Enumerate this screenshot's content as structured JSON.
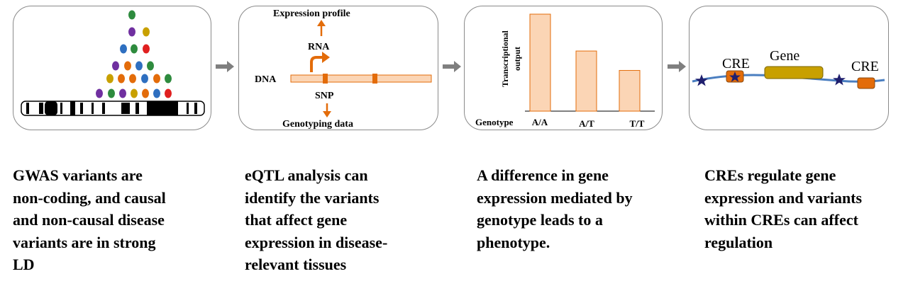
{
  "panel2": {
    "expression_profile": "Expression profile",
    "rna": "RNA",
    "dna": "DNA",
    "snp": "SNP",
    "genotyping_data": "Genotyping data"
  },
  "panel3": {
    "ylabel_line1": "Transcriptional",
    "ylabel_line2": "output",
    "genotype_label": "Genotype",
    "genotypes": [
      "A/A",
      "A/T",
      "T/T"
    ],
    "relative_output": [
      1.0,
      0.62,
      0.42
    ]
  },
  "panel4": {
    "cre_left": "CRE",
    "gene": "Gene",
    "cre_right": "CRE"
  },
  "captions": {
    "c1": [
      "GWAS variants are",
      "non-coding, and causal",
      "and non-causal disease",
      "variants are in strong",
      "LD"
    ],
    "c2": [
      "eQTL analysis can",
      "identify the variants",
      "that affect gene",
      "expression in disease-",
      "relevant tissues"
    ],
    "c3": [
      "A difference in gene",
      "expression mediated by",
      "genotype leads to a",
      "phenotype."
    ],
    "c4": [
      "CREs regulate gene",
      "expression and variants",
      "within CREs can affect",
      "regulation"
    ]
  },
  "colors": {
    "orange": "#e36c0a",
    "bar_fill": "#fbd5b5",
    "gene_fill": "#c8a000",
    "dna_line": "#4a7ec0",
    "star": "#1f1f6e",
    "arrow_gray": "#7f7f7f"
  }
}
